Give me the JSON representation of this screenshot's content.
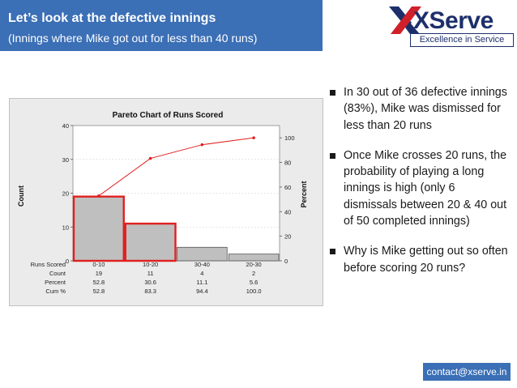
{
  "slide": {
    "title": "Let’s look at the defective innings",
    "subtitle": "(Innings where Mike got out for less than 40 runs)",
    "logo_text": "XServe",
    "logo_tagline": "Excellence in Service",
    "contact": "contact@xserve.in",
    "accent_color": "#3b6fb6",
    "brand_color": "#1d2f6b",
    "highlight_color": "#e02020"
  },
  "bullets": [
    "In 30 out of 36 defective innings (83%), Mike was dismissed for less than 20 runs",
    "Once Mike crosses 20 runs, the probability of playing a long innings is high (only 6 dismissals between 20 & 40 out of 50 completed innings)",
    "Why is Mike getting out so often before scoring 20 runs?"
  ],
  "chart_data": {
    "type": "bar",
    "title": "Pareto Chart of Runs Scored",
    "ylabel": "Count",
    "y2label": "Percent",
    "ylim": [
      0,
      40
    ],
    "y2lim": [
      0,
      110
    ],
    "yticks": [
      0,
      10,
      20,
      30,
      40
    ],
    "y2ticks": [
      0,
      20,
      40,
      60,
      80,
      100
    ],
    "categories": [
      "0-10",
      "10-20",
      "30-40",
      "20-30"
    ],
    "values": [
      19,
      11,
      4,
      2
    ],
    "cumulative": [
      52.8,
      83.3,
      94.4,
      100
    ],
    "highlighted": [
      true,
      true,
      false,
      false
    ],
    "table": {
      "row_labels": [
        "Runs Scored",
        "Count",
        "Percent",
        "Cum %"
      ],
      "count": [
        "19",
        "11",
        "4",
        "2"
      ],
      "percent": [
        "52.8",
        "30.6",
        "11.1",
        "5.6"
      ],
      "cum": [
        "52.8",
        "83.3",
        "94.4",
        "100.0"
      ]
    }
  }
}
